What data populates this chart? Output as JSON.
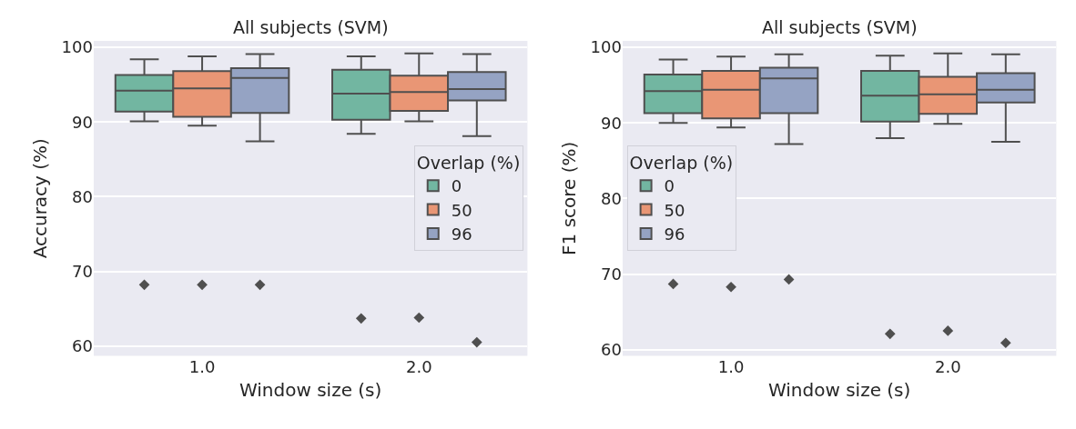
{
  "chart_data": [
    {
      "type": "box",
      "title": "All subjects (SVM)",
      "xlabel": "Window size (s)",
      "ylabel": "Accuracy (%)",
      "categories": [
        "1.0",
        "2.0"
      ],
      "legend_title": "Overlap (%)",
      "legend": "right",
      "grid": "y",
      "marker": "diamond",
      "ylim": [
        58.7,
        100.85
      ],
      "yticks": [
        60,
        70,
        80,
        90,
        100
      ],
      "series": [
        {
          "name": "0",
          "color": "#72b6a1",
          "boxes": [
            {
              "low": 90.1,
              "q1": 91.4,
              "median": 94.2,
              "q3": 96.3,
              "high": 98.4,
              "outliers": [
                68.2
              ]
            },
            {
              "low": 88.4,
              "q1": 90.3,
              "median": 93.8,
              "q3": 97.0,
              "high": 98.8,
              "outliers": [
                63.7
              ]
            }
          ]
        },
        {
          "name": "50",
          "color": "#e99675",
          "boxes": [
            {
              "low": 89.5,
              "q1": 90.7,
              "median": 94.5,
              "q3": 96.8,
              "high": 98.8,
              "outliers": [
                68.2
              ]
            },
            {
              "low": 90.1,
              "q1": 91.5,
              "median": 94.0,
              "q3": 96.2,
              "high": 99.2,
              "outliers": [
                63.8
              ]
            }
          ]
        },
        {
          "name": "96",
          "color": "#95a3c3",
          "boxes": [
            {
              "low": 87.4,
              "q1": 91.2,
              "median": 95.9,
              "q3": 97.2,
              "high": 99.1,
              "outliers": [
                68.2
              ]
            },
            {
              "low": 88.1,
              "q1": 92.9,
              "median": 94.4,
              "q3": 96.7,
              "high": 99.1,
              "outliers": [
                60.5
              ]
            }
          ]
        }
      ]
    },
    {
      "type": "box",
      "title": "All subjects (SVM)",
      "xlabel": "Window size (s)",
      "ylabel": "F1 score (%)",
      "categories": [
        "1.0",
        "2.0"
      ],
      "legend_title": "Overlap (%)",
      "legend": "left",
      "grid": "y",
      "marker": "diamond",
      "ylim": [
        59.2,
        100.85
      ],
      "yticks": [
        60,
        70,
        80,
        90,
        100
      ],
      "series": [
        {
          "name": "0",
          "color": "#72b6a1",
          "boxes": [
            {
              "low": 90.0,
              "q1": 91.3,
              "median": 94.2,
              "q3": 96.4,
              "high": 98.4,
              "outliers": [
                68.7
              ]
            },
            {
              "low": 88.0,
              "q1": 90.2,
              "median": 93.6,
              "q3": 96.9,
              "high": 98.9,
              "outliers": [
                62.1
              ]
            }
          ]
        },
        {
          "name": "50",
          "color": "#e99675",
          "boxes": [
            {
              "low": 89.4,
              "q1": 90.6,
              "median": 94.4,
              "q3": 96.9,
              "high": 98.8,
              "outliers": [
                68.3
              ]
            },
            {
              "low": 89.9,
              "q1": 91.2,
              "median": 93.8,
              "q3": 96.1,
              "high": 99.2,
              "outliers": [
                62.5
              ]
            }
          ]
        },
        {
          "name": "96",
          "color": "#95a3c3",
          "boxes": [
            {
              "low": 87.2,
              "q1": 91.3,
              "median": 95.9,
              "q3": 97.3,
              "high": 99.1,
              "outliers": [
                69.3
              ]
            },
            {
              "low": 87.5,
              "q1": 92.7,
              "median": 94.4,
              "q3": 96.6,
              "high": 99.1,
              "outliers": [
                60.9
              ]
            }
          ]
        }
      ]
    }
  ]
}
